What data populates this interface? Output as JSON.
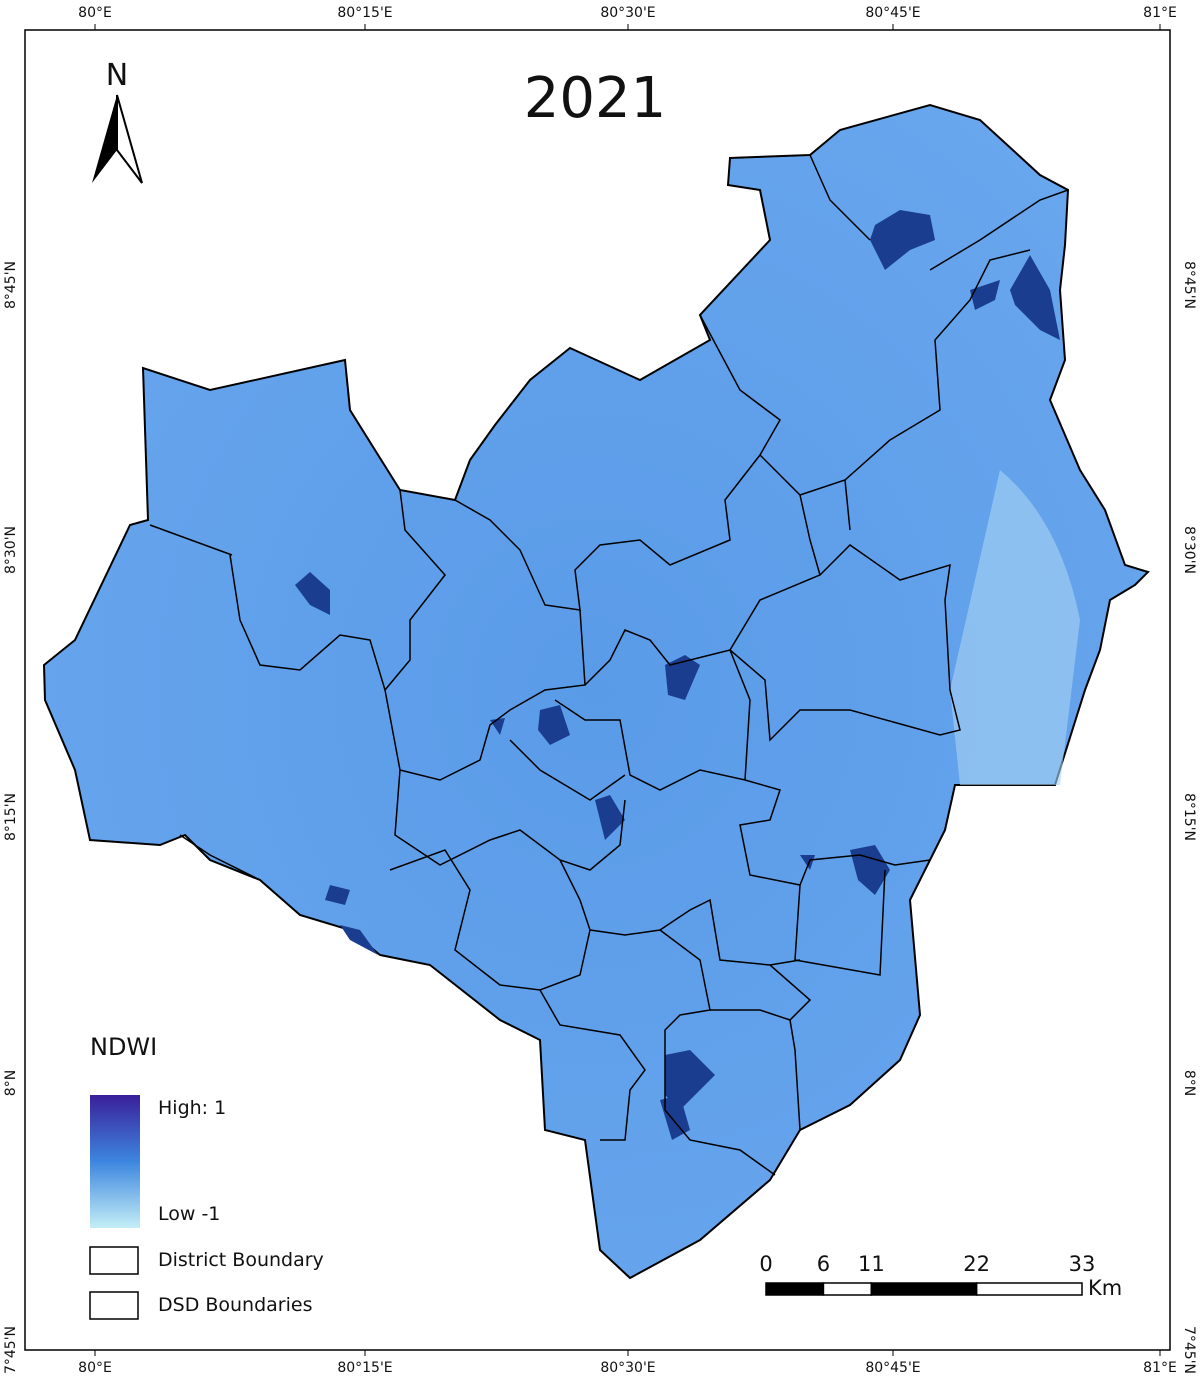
{
  "map": {
    "title": "2021",
    "north_arrow": "N",
    "graticule": {
      "x_labels": [
        "80°E",
        "80°15'E",
        "80°30'E",
        "80°45'E",
        "81°E"
      ],
      "y_labels": [
        "8°45'N",
        "8°30'N",
        "8°15'N",
        "8°N",
        "7°45'N"
      ]
    },
    "legend": {
      "title": "NDWI",
      "high": "High: 1",
      "low": "Low -1",
      "district": "District Boundary",
      "dsd": "DSD Boundaries"
    },
    "scale_bar": {
      "ticks": [
        0,
        6,
        11,
        22,
        33
      ],
      "unit": "Km"
    }
  }
}
